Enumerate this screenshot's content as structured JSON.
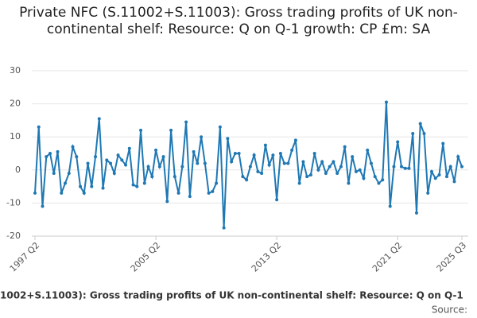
{
  "chart_data": {
    "type": "line",
    "title": "Private NFC (S.11002+S.11003): Gross trading profits of UK non-continental shelf: Resource: Q on Q-1 growth: CP £m: SA",
    "footer": "1002+S.11003): Gross trading profits of UK non-continental shelf: Resource: Q on Q-1",
    "source": "Source:",
    "categories": [
      "1997 Q2",
      null,
      null,
      null,
      null,
      null,
      null,
      null,
      null,
      null,
      null,
      null,
      null,
      null,
      null,
      null,
      null,
      null,
      null,
      null,
      null,
      null,
      null,
      null,
      null,
      null,
      null,
      null,
      null,
      null,
      null,
      null,
      "2005 Q2",
      null,
      null,
      null,
      null,
      null,
      null,
      null,
      null,
      null,
      null,
      null,
      null,
      null,
      null,
      null,
      null,
      null,
      null,
      null,
      null,
      null,
      null,
      null,
      null,
      null,
      null,
      null,
      null,
      null,
      null,
      null,
      "2013 Q2",
      null,
      null,
      null,
      null,
      null,
      null,
      null,
      null,
      null,
      null,
      null,
      null,
      null,
      null,
      null,
      null,
      null,
      null,
      null,
      null,
      null,
      null,
      null,
      null,
      null,
      null,
      null,
      null,
      null,
      null,
      null,
      "2021 Q2",
      null,
      null,
      null,
      null,
      null,
      null,
      null,
      null,
      null,
      null,
      null,
      null,
      null,
      null,
      null,
      null,
      "2025 Q3"
    ],
    "series": [
      {
        "name": "Q on Q-1 growth",
        "color": "#1f78b4",
        "values": [
          -7,
          13,
          -11,
          4,
          5,
          -1,
          5.5,
          -7,
          -4,
          -1,
          7,
          4,
          -5,
          -7,
          2,
          -5,
          4,
          15.5,
          -5.5,
          3,
          2,
          -1,
          4.5,
          3,
          1.5,
          6.5,
          -4.5,
          -5,
          12,
          -4,
          1,
          -2,
          6,
          1,
          4,
          -9.5,
          12,
          -2,
          -7,
          1,
          14.5,
          -8,
          5.5,
          2,
          10,
          2,
          -7,
          -6.5,
          -4,
          13,
          -17.5,
          9.5,
          2.5,
          5,
          5,
          -2,
          -3,
          1,
          4.5,
          -0.5,
          -1,
          7.5,
          1.5,
          4.5,
          -9,
          5,
          2,
          2,
          6,
          9,
          -4,
          2.5,
          -2,
          -1.5,
          5,
          0,
          2.5,
          -1,
          1,
          2.5,
          -1,
          1,
          7,
          -4,
          4,
          -0.5,
          0,
          -2.5,
          6,
          2,
          -2,
          -4,
          -3,
          20.5,
          -11,
          1,
          8.5,
          1,
          0.5,
          0.5,
          11,
          -13,
          14,
          11,
          -7,
          -0.5,
          -2.5,
          -1.5,
          8,
          -2,
          1,
          -3.5,
          4,
          1
        ]
      }
    ],
    "ylim": [
      -20,
      30
    ],
    "yticks": [
      -20,
      -10,
      0,
      10,
      20,
      30
    ],
    "grid": true
  }
}
